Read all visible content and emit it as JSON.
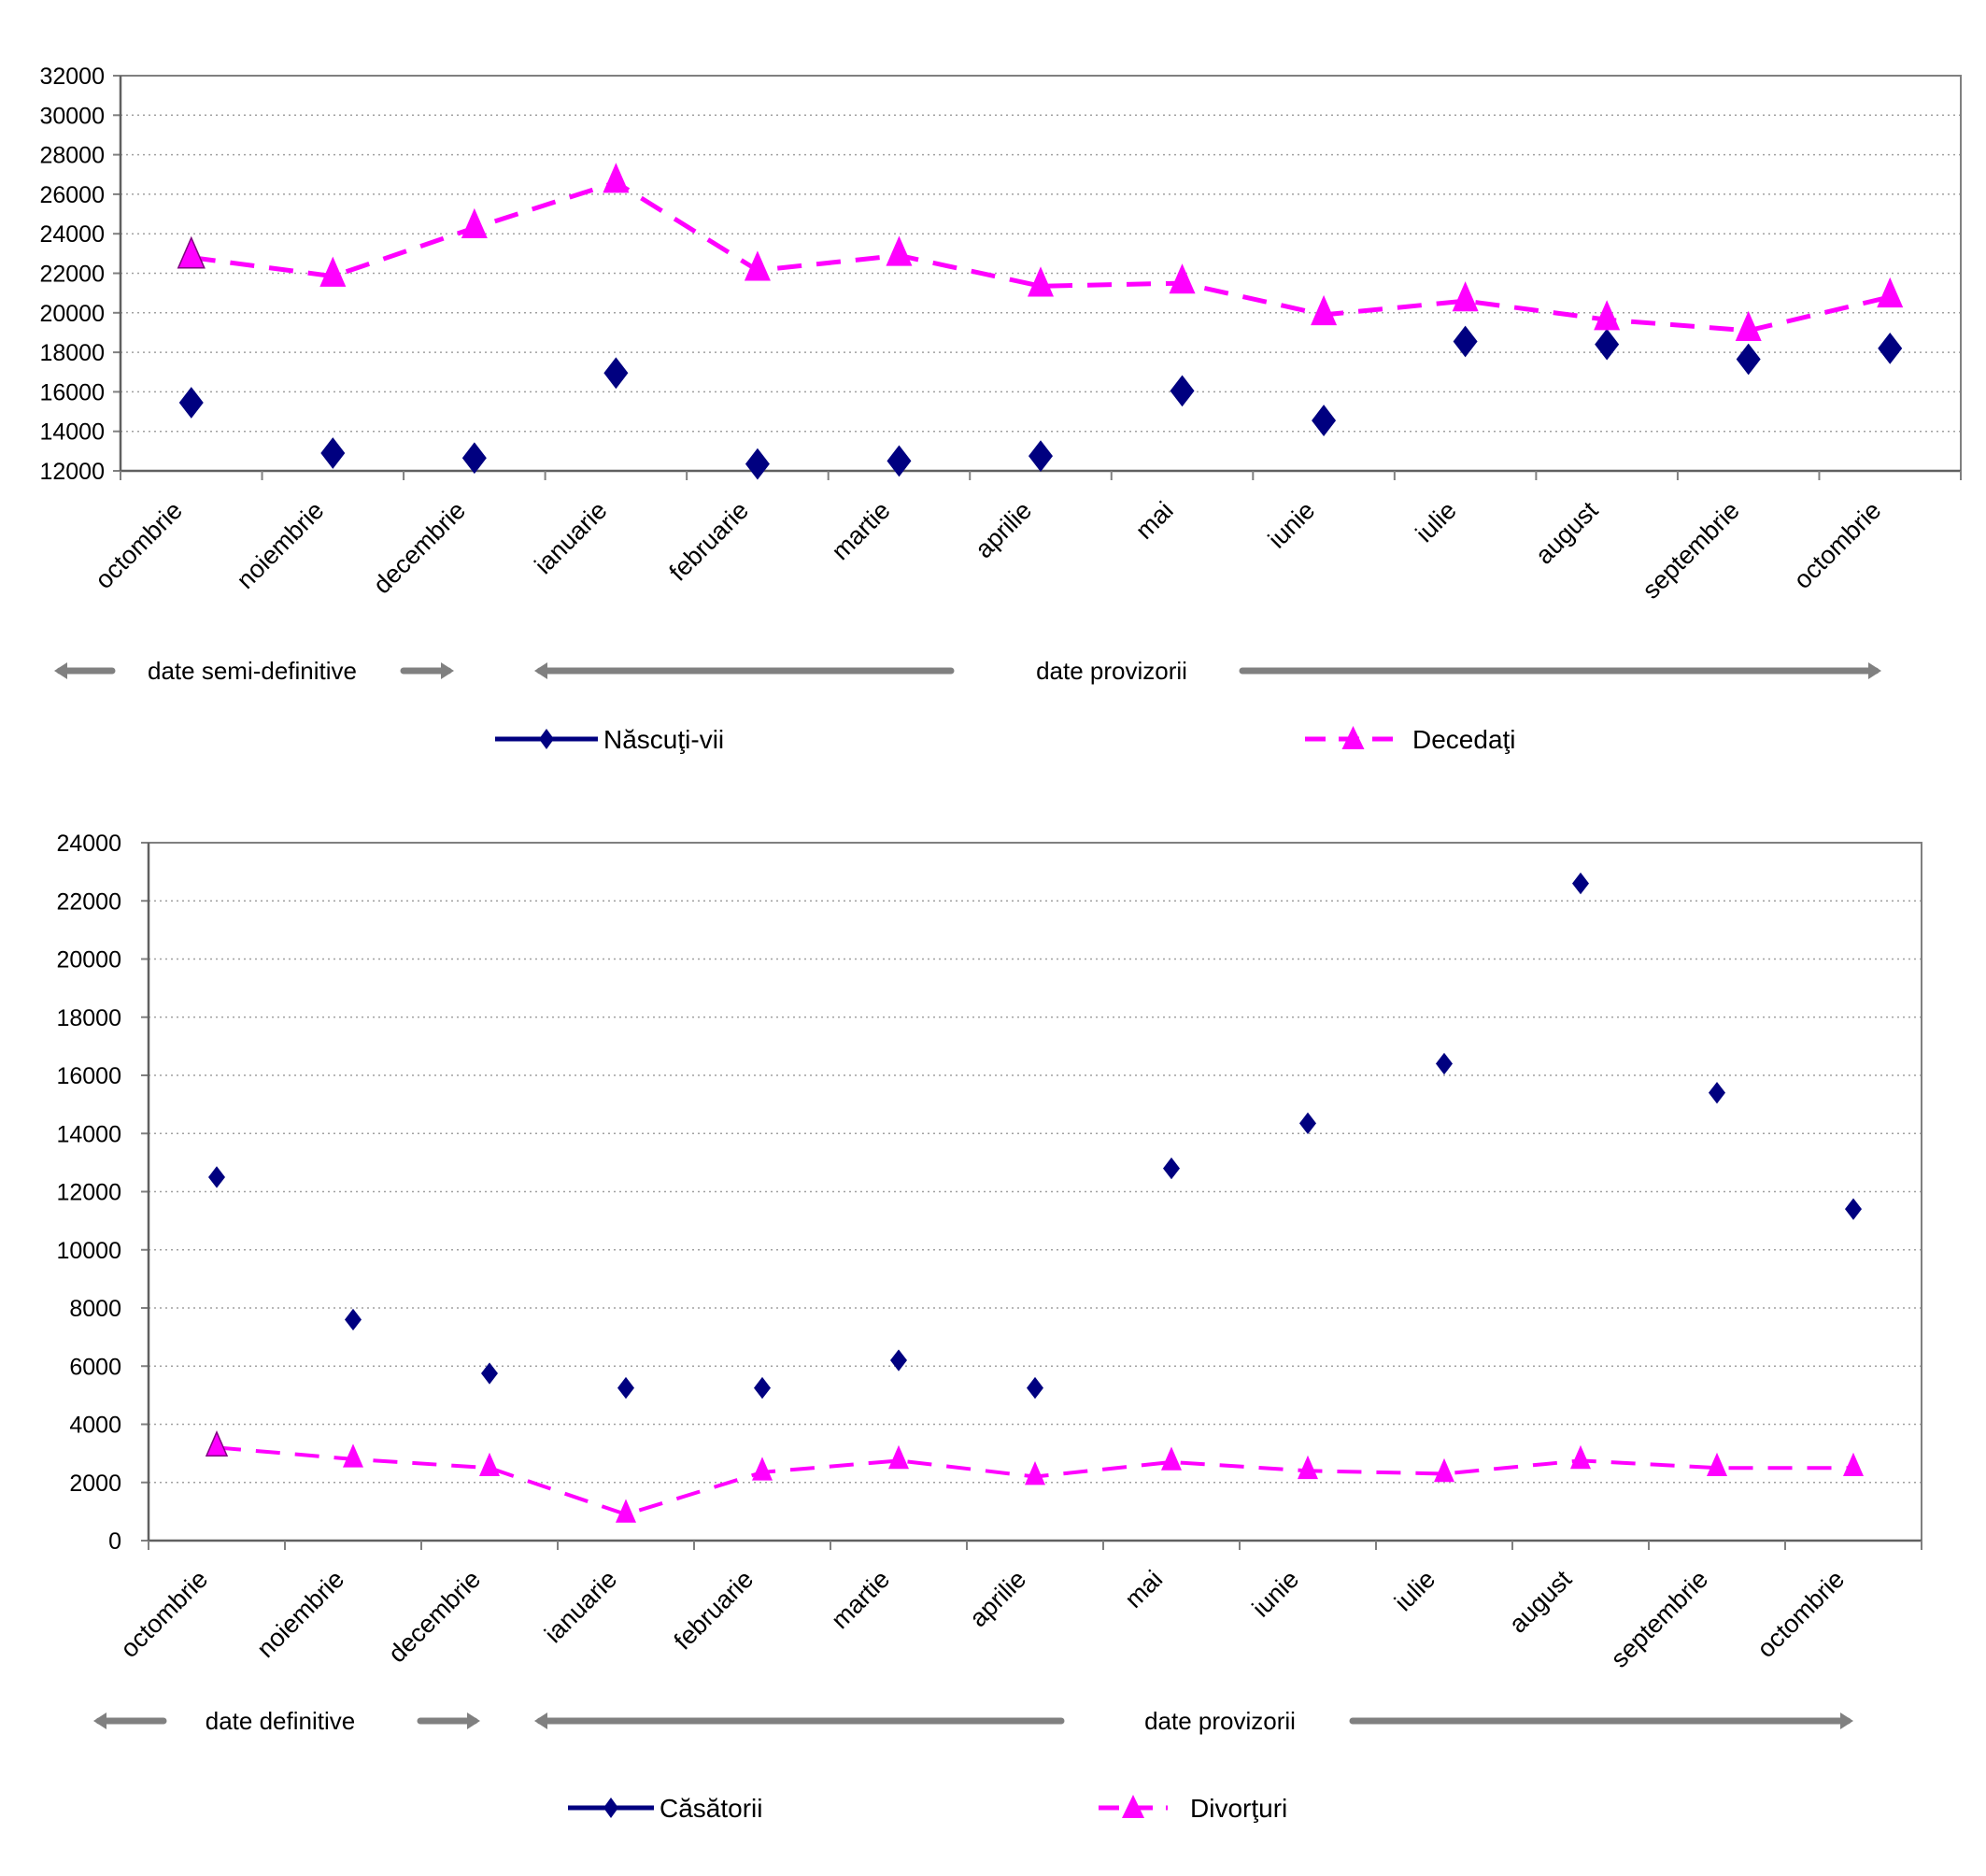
{
  "colors": {
    "born": "#000080",
    "deceased": "#ff00ff",
    "arrow": "#808080",
    "grid": "#a0a0a0",
    "axis": "#808080"
  },
  "chart_data": [
    {
      "type": "line",
      "title": "",
      "xlabel": "",
      "ylabel": "",
      "ylim": [
        12000,
        32000
      ],
      "yticks": [
        "12000",
        "14000",
        "16000",
        "18000",
        "20000",
        "22000",
        "24000",
        "26000",
        "28000",
        "30000",
        "32000"
      ],
      "grid": true,
      "legend_position": "bottom",
      "categories": [
        "octombrie",
        "noiembrie",
        "decembrie",
        "ianuarie",
        "februarie",
        "martie",
        "aprilie",
        "mai",
        "iunie",
        "iulie",
        "august",
        "septembrie",
        "octombrie"
      ],
      "series": [
        {
          "name": "Născuţi-vii",
          "marker": "diamond",
          "line": "none",
          "values": [
            15450,
            12900,
            12650,
            16950,
            12350,
            12500,
            12750,
            16050,
            14550,
            18550,
            18400,
            17650,
            18200
          ]
        },
        {
          "name": "Decedaţi",
          "marker": "triangle",
          "line": "dashed",
          "values": [
            22800,
            21850,
            24300,
            26600,
            22150,
            22900,
            21350,
            21500,
            19900,
            20600,
            19650,
            19100,
            20800
          ]
        }
      ],
      "annotations": [
        {
          "text": "date semi-definitive",
          "range": "octombrie–decembrie"
        },
        {
          "text": "date provizorii",
          "range": "ianuarie–octombrie"
        }
      ]
    },
    {
      "type": "line",
      "title": "",
      "xlabel": "",
      "ylabel": "",
      "ylim": [
        0,
        24000
      ],
      "yticks": [
        "0",
        "2000",
        "4000",
        "6000",
        "8000",
        "10000",
        "12000",
        "14000",
        "16000",
        "18000",
        "20000",
        "22000",
        "24000"
      ],
      "grid": true,
      "legend_position": "bottom",
      "categories": [
        "octombrie",
        "noiembrie",
        "decembrie",
        "ianuarie",
        "februarie",
        "martie",
        "aprilie",
        "mai",
        "iunie",
        "iulie",
        "august",
        "septembrie",
        "octombrie"
      ],
      "series": [
        {
          "name": "Căsătorii",
          "marker": "diamond",
          "line": "none",
          "values": [
            12500,
            7600,
            5750,
            5250,
            5250,
            6200,
            5250,
            12800,
            14350,
            16400,
            22600,
            15400,
            11400
          ]
        },
        {
          "name": "Divorţuri",
          "marker": "triangle",
          "line": "dashed",
          "values": [
            3200,
            2800,
            2500,
            900,
            2350,
            2750,
            2200,
            2700,
            2400,
            2300,
            2750,
            2500,
            2500
          ]
        }
      ],
      "annotations": [
        {
          "text": "date definitive",
          "range": "octombrie–decembrie"
        },
        {
          "text": "date provizorii",
          "range": "ianuarie–octombrie"
        }
      ]
    }
  ]
}
